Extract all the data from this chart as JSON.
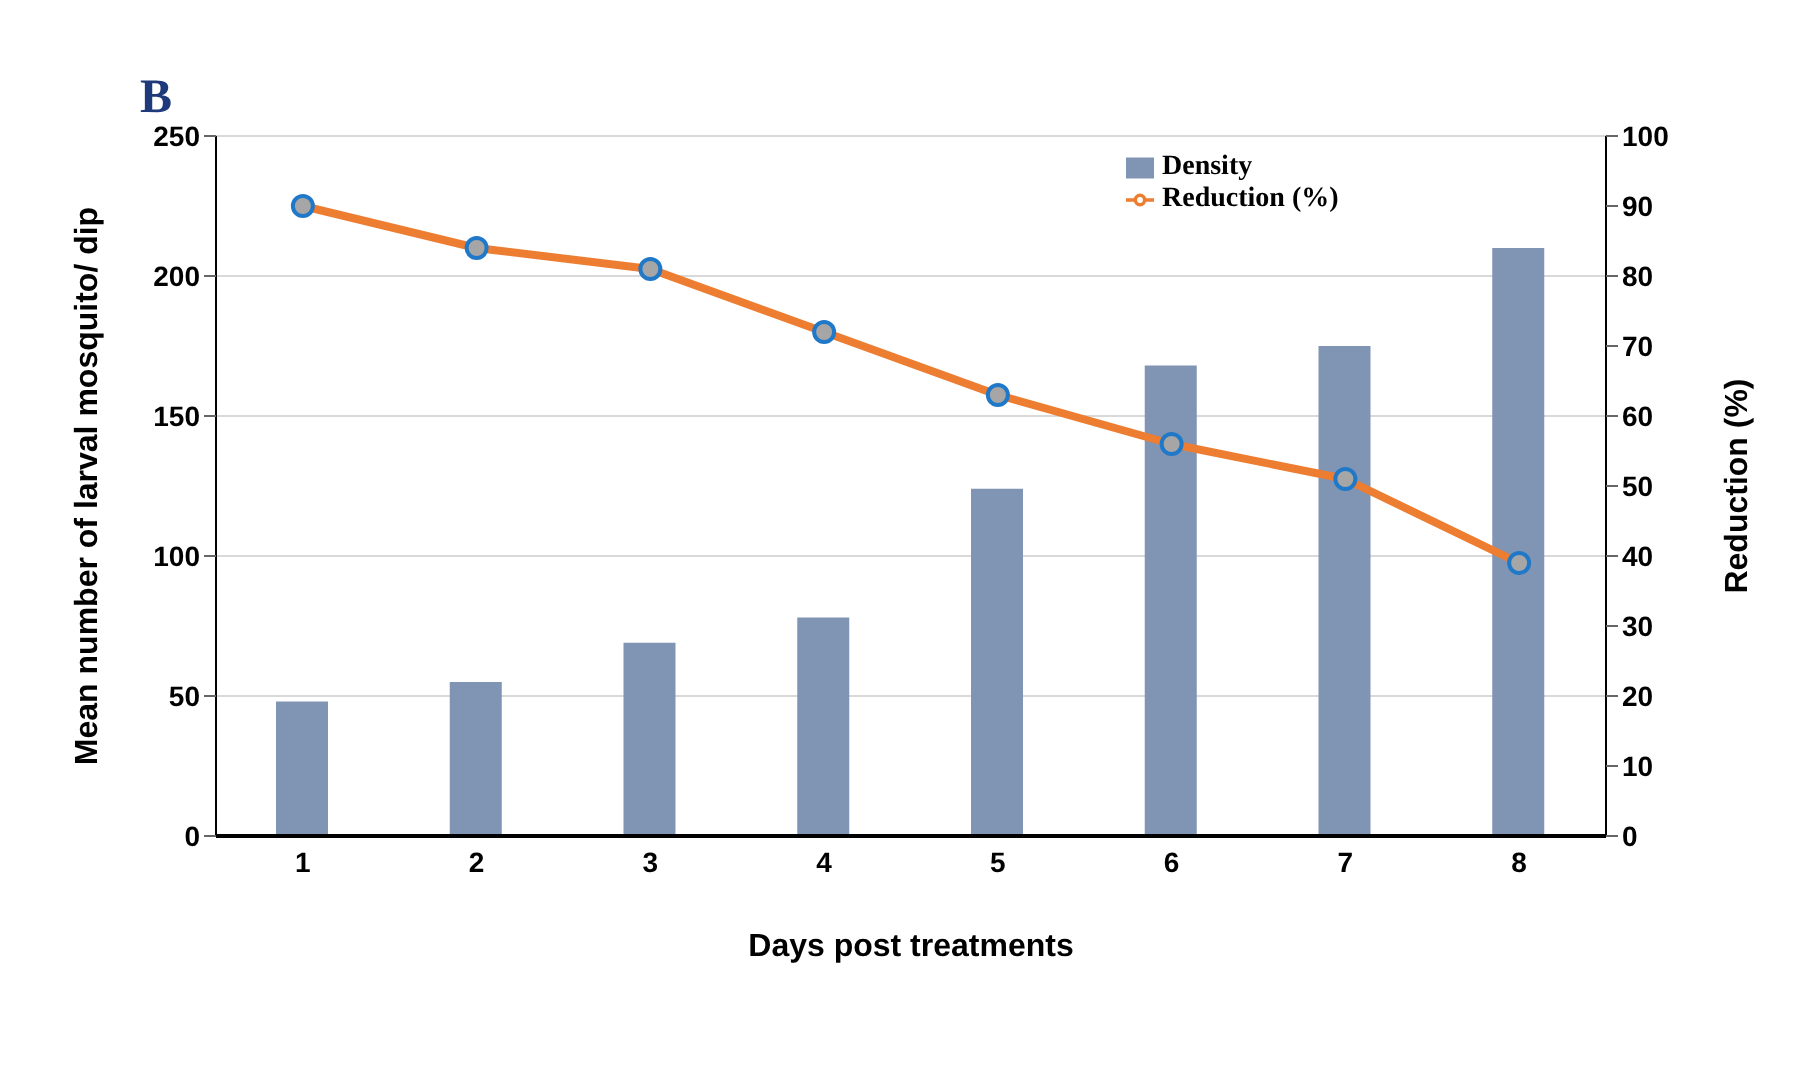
{
  "chart_data": {
    "type": "bar",
    "title": "B",
    "xlabel": "Days post treatments",
    "ylabel": "Mean number of larval mosquito/ dip",
    "y2label": "Reduction (%)",
    "categories": [
      "1",
      "2",
      "3",
      "4",
      "5",
      "6",
      "7",
      "8"
    ],
    "series": [
      {
        "name": "Density",
        "color": "#8094b4",
        "values": [
          48,
          55,
          69,
          78,
          124,
          168,
          175,
          210
        ]
      },
      {
        "name": "Reduction (%)",
        "type": "line",
        "axis": "y2",
        "color": "#ed7d31",
        "marker": "circle",
        "line_style": "solid",
        "values": [
          90,
          84,
          81,
          72,
          63,
          56,
          51,
          39
        ]
      }
    ],
    "ylim": [
      0,
      250
    ],
    "yticks": [
      0,
      50,
      100,
      150,
      200,
      250
    ],
    "y2lim": [
      0,
      100
    ],
    "y2ticks": [
      0,
      10,
      20,
      30,
      40,
      50,
      60,
      70,
      80,
      90,
      100
    ],
    "grid": "y",
    "legend": "top right"
  }
}
